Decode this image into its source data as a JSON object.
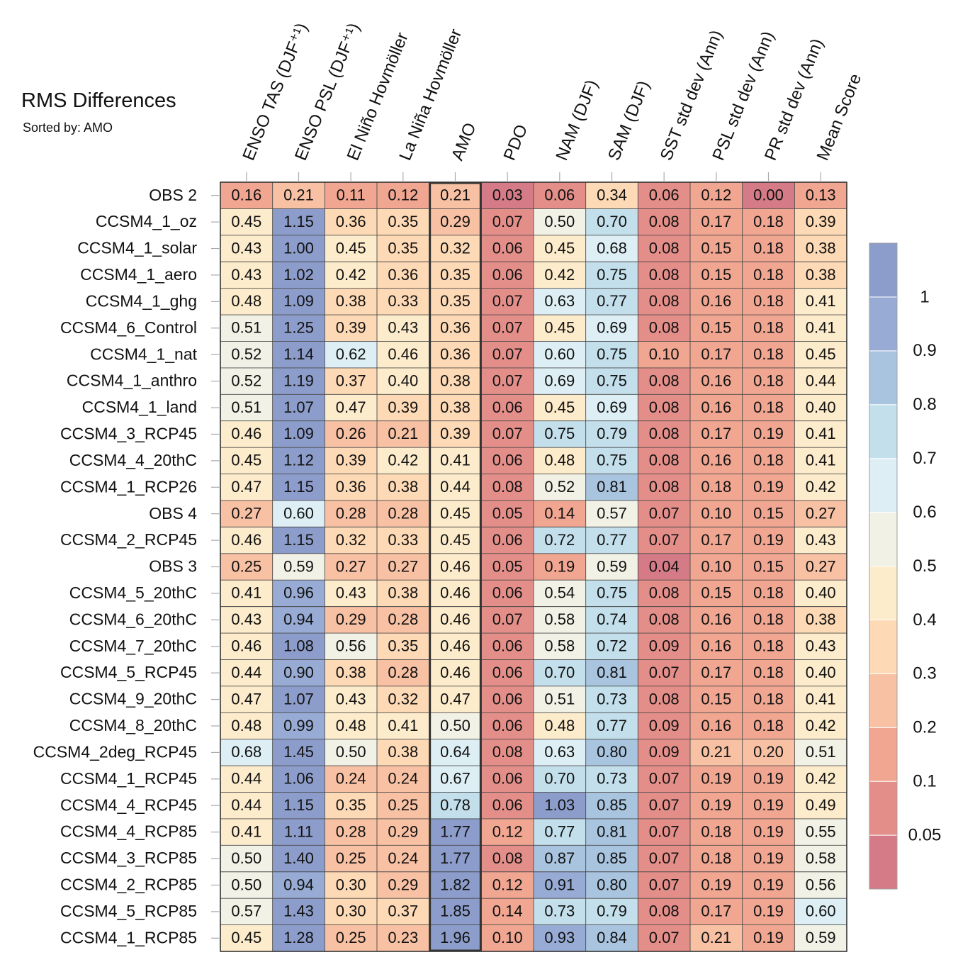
{
  "chart_data": {
    "type": "heatmap",
    "title": "RMS Differences",
    "subtitle": "Sorted by: AMO",
    "sorted_by": "AMO",
    "columns": [
      "ENSO TAS (DJF⁺¹)",
      "ENSO PSL (DJF⁺¹)",
      "El Niño Hovmöller",
      "La Niña Hovmöller",
      "AMO",
      "PDO",
      "NAM (DJF)",
      "SAM (DJF)",
      "SST std dev (Ann)",
      "PSL std dev (Ann)",
      "PR std dev (Ann)",
      "Mean Score"
    ],
    "rows": [
      {
        "name": "OBS 2",
        "values": [
          "0.16",
          "0.21",
          "0.11",
          "0.12",
          "0.21",
          "0.03",
          "0.06",
          "0.34",
          "0.06",
          "0.12",
          "0.00",
          "0.13"
        ]
      },
      {
        "name": "CCSM4_1_oz",
        "values": [
          "0.45",
          "1.15",
          "0.36",
          "0.35",
          "0.29",
          "0.07",
          "0.50",
          "0.70",
          "0.08",
          "0.17",
          "0.18",
          "0.39"
        ]
      },
      {
        "name": "CCSM4_1_solar",
        "values": [
          "0.43",
          "1.00",
          "0.45",
          "0.35",
          "0.32",
          "0.06",
          "0.45",
          "0.68",
          "0.08",
          "0.15",
          "0.18",
          "0.38"
        ]
      },
      {
        "name": "CCSM4_1_aero",
        "values": [
          "0.43",
          "1.02",
          "0.42",
          "0.36",
          "0.35",
          "0.06",
          "0.42",
          "0.75",
          "0.08",
          "0.15",
          "0.18",
          "0.38"
        ]
      },
      {
        "name": "CCSM4_1_ghg",
        "values": [
          "0.48",
          "1.09",
          "0.38",
          "0.33",
          "0.35",
          "0.07",
          "0.63",
          "0.77",
          "0.08",
          "0.16",
          "0.18",
          "0.41"
        ]
      },
      {
        "name": "CCSM4_6_Control",
        "values": [
          "0.51",
          "1.25",
          "0.39",
          "0.43",
          "0.36",
          "0.07",
          "0.45",
          "0.69",
          "0.08",
          "0.15",
          "0.18",
          "0.41"
        ]
      },
      {
        "name": "CCSM4_1_nat",
        "values": [
          "0.52",
          "1.14",
          "0.62",
          "0.46",
          "0.36",
          "0.07",
          "0.60",
          "0.75",
          "0.10",
          "0.17",
          "0.18",
          "0.45"
        ]
      },
      {
        "name": "CCSM4_1_anthro",
        "values": [
          "0.52",
          "1.19",
          "0.37",
          "0.40",
          "0.38",
          "0.07",
          "0.69",
          "0.75",
          "0.08",
          "0.16",
          "0.18",
          "0.44"
        ]
      },
      {
        "name": "CCSM4_1_land",
        "values": [
          "0.51",
          "1.07",
          "0.47",
          "0.39",
          "0.38",
          "0.06",
          "0.45",
          "0.69",
          "0.08",
          "0.16",
          "0.18",
          "0.40"
        ]
      },
      {
        "name": "CCSM4_3_RCP45",
        "values": [
          "0.46",
          "1.09",
          "0.26",
          "0.21",
          "0.39",
          "0.07",
          "0.75",
          "0.79",
          "0.08",
          "0.17",
          "0.19",
          "0.41"
        ]
      },
      {
        "name": "CCSM4_4_20thC",
        "values": [
          "0.45",
          "1.12",
          "0.39",
          "0.42",
          "0.41",
          "0.06",
          "0.48",
          "0.75",
          "0.08",
          "0.16",
          "0.18",
          "0.41"
        ]
      },
      {
        "name": "CCSM4_1_RCP26",
        "values": [
          "0.47",
          "1.15",
          "0.36",
          "0.38",
          "0.44",
          "0.08",
          "0.52",
          "0.81",
          "0.08",
          "0.18",
          "0.19",
          "0.42"
        ]
      },
      {
        "name": "OBS 4",
        "values": [
          "0.27",
          "0.60",
          "0.28",
          "0.28",
          "0.45",
          "0.05",
          "0.14",
          "0.57",
          "0.07",
          "0.10",
          "0.15",
          "0.27"
        ]
      },
      {
        "name": "CCSM4_2_RCP45",
        "values": [
          "0.46",
          "1.15",
          "0.32",
          "0.33",
          "0.45",
          "0.06",
          "0.72",
          "0.77",
          "0.07",
          "0.17",
          "0.19",
          "0.43"
        ]
      },
      {
        "name": "OBS 3",
        "values": [
          "0.25",
          "0.59",
          "0.27",
          "0.27",
          "0.46",
          "0.05",
          "0.19",
          "0.59",
          "0.04",
          "0.10",
          "0.15",
          "0.27"
        ]
      },
      {
        "name": "CCSM4_5_20thC",
        "values": [
          "0.41",
          "0.96",
          "0.43",
          "0.38",
          "0.46",
          "0.06",
          "0.54",
          "0.75",
          "0.08",
          "0.15",
          "0.18",
          "0.40"
        ]
      },
      {
        "name": "CCSM4_6_20thC",
        "values": [
          "0.43",
          "0.94",
          "0.29",
          "0.28",
          "0.46",
          "0.07",
          "0.58",
          "0.74",
          "0.08",
          "0.16",
          "0.18",
          "0.38"
        ]
      },
      {
        "name": "CCSM4_7_20thC",
        "values": [
          "0.46",
          "1.08",
          "0.56",
          "0.35",
          "0.46",
          "0.06",
          "0.58",
          "0.72",
          "0.09",
          "0.16",
          "0.18",
          "0.43"
        ]
      },
      {
        "name": "CCSM4_5_RCP45",
        "values": [
          "0.44",
          "0.90",
          "0.38",
          "0.28",
          "0.46",
          "0.06",
          "0.70",
          "0.81",
          "0.07",
          "0.17",
          "0.18",
          "0.40"
        ]
      },
      {
        "name": "CCSM4_9_20thC",
        "values": [
          "0.47",
          "1.07",
          "0.43",
          "0.32",
          "0.47",
          "0.06",
          "0.51",
          "0.73",
          "0.08",
          "0.15",
          "0.18",
          "0.41"
        ]
      },
      {
        "name": "CCSM4_8_20thC",
        "values": [
          "0.48",
          "0.99",
          "0.48",
          "0.41",
          "0.50",
          "0.06",
          "0.48",
          "0.77",
          "0.09",
          "0.16",
          "0.18",
          "0.42"
        ]
      },
      {
        "name": "CCSM4_2deg_RCP45",
        "values": [
          "0.68",
          "1.45",
          "0.50",
          "0.38",
          "0.64",
          "0.08",
          "0.63",
          "0.80",
          "0.09",
          "0.21",
          "0.20",
          "0.51"
        ]
      },
      {
        "name": "CCSM4_1_RCP45",
        "values": [
          "0.44",
          "1.06",
          "0.24",
          "0.24",
          "0.67",
          "0.06",
          "0.70",
          "0.73",
          "0.07",
          "0.19",
          "0.19",
          "0.42"
        ]
      },
      {
        "name": "CCSM4_4_RCP45",
        "values": [
          "0.44",
          "1.15",
          "0.35",
          "0.25",
          "0.78",
          "0.06",
          "1.03",
          "0.85",
          "0.07",
          "0.19",
          "0.19",
          "0.49"
        ]
      },
      {
        "name": "CCSM4_4_RCP85",
        "values": [
          "0.41",
          "1.11",
          "0.28",
          "0.29",
          "1.77",
          "0.12",
          "0.77",
          "0.81",
          "0.07",
          "0.18",
          "0.19",
          "0.55"
        ]
      },
      {
        "name": "CCSM4_3_RCP85",
        "values": [
          "0.50",
          "1.40",
          "0.25",
          "0.24",
          "1.77",
          "0.08",
          "0.87",
          "0.85",
          "0.07",
          "0.18",
          "0.19",
          "0.58"
        ]
      },
      {
        "name": "CCSM4_2_RCP85",
        "values": [
          "0.50",
          "0.94",
          "0.30",
          "0.29",
          "1.82",
          "0.12",
          "0.91",
          "0.80",
          "0.07",
          "0.19",
          "0.19",
          "0.56"
        ]
      },
      {
        "name": "CCSM4_5_RCP85",
        "values": [
          "0.57",
          "1.43",
          "0.30",
          "0.37",
          "1.85",
          "0.14",
          "0.73",
          "0.79",
          "0.08",
          "0.17",
          "0.19",
          "0.60"
        ]
      },
      {
        "name": "CCSM4_1_RCP85",
        "values": [
          "0.45",
          "1.28",
          "0.25",
          "0.23",
          "1.96",
          "0.10",
          "0.93",
          "0.84",
          "0.07",
          "0.21",
          "0.19",
          "0.59"
        ]
      }
    ],
    "colorbar": {
      "boundaries": [
        0.05,
        0.1,
        0.2,
        0.3,
        0.4,
        0.5,
        0.6,
        0.7,
        0.8,
        0.9,
        1
      ],
      "tick_labels": [
        "0.05",
        "0.1",
        "0.2",
        "0.3",
        "0.4",
        "0.5",
        "0.6",
        "0.7",
        "0.8",
        "0.9",
        "1"
      ],
      "colors": [
        "#d47b87",
        "#e48e89",
        "#f0a691",
        "#f8c1a4",
        "#fdd9b5",
        "#fdeccb",
        "#f2f1e6",
        "#ddeff5",
        "#c3dfeb",
        "#a9c4df",
        "#97abd4",
        "#8d9dcb"
      ]
    }
  }
}
